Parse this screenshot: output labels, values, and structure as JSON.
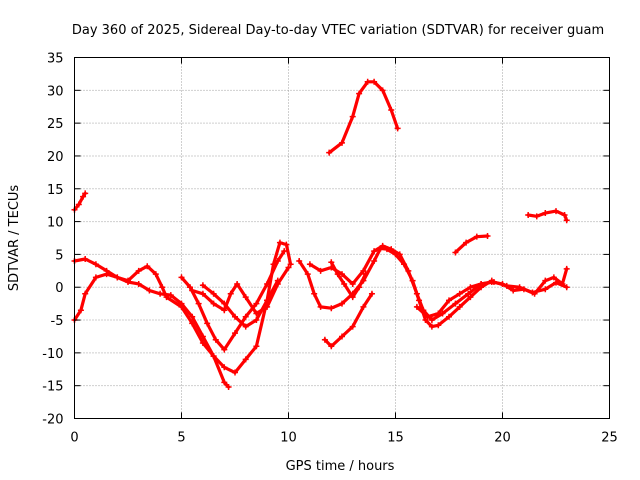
{
  "chart_data": {
    "type": "line",
    "title": "Day 360 of 2025, Sidereal Day-to-day VTEC variation (SDTVAR) for receiver guam",
    "xlabel": "GPS time / hours",
    "ylabel": "SDTVAR / TECUs",
    "xlim": [
      0,
      25
    ],
    "ylim": [
      -20,
      35
    ],
    "xticks": [
      0,
      5,
      10,
      15,
      20,
      25
    ],
    "yticks": [
      -20,
      -15,
      -10,
      -5,
      0,
      5,
      10,
      15,
      20,
      25,
      30,
      35
    ],
    "grid": true,
    "marker": "+",
    "color": "#ff0000",
    "series": [
      {
        "name": "arc-top",
        "points": [
          [
            11.9,
            20.5
          ],
          [
            12.5,
            22
          ],
          [
            13.0,
            26
          ],
          [
            13.3,
            29.5
          ],
          [
            13.7,
            31.3
          ],
          [
            14.0,
            31.3
          ],
          [
            14.4,
            30
          ],
          [
            14.8,
            27
          ],
          [
            15.1,
            24.2
          ]
        ]
      },
      {
        "name": "arc-start",
        "points": [
          [
            0.0,
            11.8
          ],
          [
            0.2,
            12.6
          ],
          [
            0.4,
            13.8
          ],
          [
            0.5,
            14.3
          ]
        ]
      },
      {
        "name": "arc-late",
        "points": [
          [
            21.2,
            11.0
          ],
          [
            21.6,
            10.8
          ],
          [
            22.0,
            11.3
          ],
          [
            22.5,
            11.6
          ],
          [
            22.9,
            11.0
          ],
          [
            23.0,
            10.2
          ]
        ]
      },
      {
        "name": "arc-19h",
        "points": [
          [
            17.8,
            5.3
          ],
          [
            18.3,
            6.8
          ],
          [
            18.8,
            7.7
          ],
          [
            19.3,
            7.8
          ]
        ]
      },
      {
        "name": "arc-a",
        "points": [
          [
            0.0,
            4.0
          ],
          [
            0.5,
            4.3
          ],
          [
            1.0,
            3.5
          ],
          [
            1.5,
            2.5
          ],
          [
            2.0,
            1.5
          ],
          [
            2.5,
            0.8
          ],
          [
            3.0,
            0.5
          ],
          [
            3.5,
            -0.5
          ],
          [
            4.0,
            -1.0
          ],
          [
            4.5,
            -1.2
          ],
          [
            5.0,
            -2.5
          ],
          [
            5.5,
            -4.5
          ],
          [
            6.0,
            -7.5
          ],
          [
            6.5,
            -10.5
          ],
          [
            7.0,
            -14.5
          ],
          [
            7.2,
            -15.2
          ]
        ]
      },
      {
        "name": "arc-b",
        "points": [
          [
            0.0,
            -5.0
          ],
          [
            0.3,
            -3.5
          ],
          [
            0.5,
            -1.0
          ],
          [
            1.0,
            1.5
          ],
          [
            1.5,
            2.0
          ],
          [
            2.0,
            1.5
          ],
          [
            2.5,
            1.0
          ],
          [
            3.0,
            2.5
          ],
          [
            3.4,
            3.2
          ],
          [
            3.8,
            2.0
          ],
          [
            4.1,
            0.0
          ],
          [
            4.3,
            -1.5
          ],
          [
            5.0,
            -3.0
          ],
          [
            5.5,
            -5.5
          ],
          [
            6.0,
            -8.5
          ],
          [
            6.5,
            -10.5
          ],
          [
            7.0,
            -12.2
          ],
          [
            7.5,
            -13.0
          ],
          [
            8.0,
            -11.0
          ],
          [
            8.5,
            -9.0
          ],
          [
            9.0,
            -2.0
          ],
          [
            9.3,
            3.5
          ],
          [
            9.6,
            6.8
          ],
          [
            9.9,
            6.5
          ],
          [
            10.1,
            3.5
          ]
        ]
      },
      {
        "name": "arc-c",
        "points": [
          [
            5.0,
            1.5
          ],
          [
            5.4,
            0.0
          ],
          [
            5.8,
            -2.5
          ],
          [
            6.2,
            -5.5
          ],
          [
            6.6,
            -8.0
          ],
          [
            7.0,
            -9.5
          ],
          [
            7.5,
            -7.0
          ],
          [
            8.0,
            -4.5
          ],
          [
            8.5,
            -2.5
          ],
          [
            9.0,
            0.5
          ],
          [
            9.5,
            4.0
          ],
          [
            9.8,
            5.5
          ]
        ]
      },
      {
        "name": "arc-d",
        "points": [
          [
            5.5,
            -0.5
          ],
          [
            6.0,
            -1.0
          ],
          [
            6.5,
            -2.5
          ],
          [
            7.0,
            -3.5
          ],
          [
            7.3,
            -1.0
          ],
          [
            7.6,
            0.5
          ],
          [
            8.0,
            -1.5
          ],
          [
            8.5,
            -4.0
          ],
          [
            9.0,
            -3.0
          ],
          [
            9.5,
            0.5
          ],
          [
            10.0,
            3.0
          ]
        ]
      },
      {
        "name": "arc-e",
        "points": [
          [
            6.0,
            0.3
          ],
          [
            6.5,
            -1.0
          ],
          [
            7.0,
            -2.5
          ],
          [
            7.5,
            -4.5
          ],
          [
            8.0,
            -6.0
          ],
          [
            8.5,
            -5.0
          ],
          [
            9.0,
            -2.0
          ],
          [
            9.5,
            1.0
          ]
        ]
      },
      {
        "name": "arc-f",
        "points": [
          [
            10.5,
            4.0
          ],
          [
            10.9,
            2.0
          ],
          [
            11.2,
            -1.0
          ],
          [
            11.5,
            -3.0
          ],
          [
            12.0,
            -3.2
          ],
          [
            12.5,
            -2.5
          ],
          [
            13.0,
            -1.0
          ],
          [
            13.5,
            1.0
          ],
          [
            14.0,
            4.0
          ],
          [
            14.3,
            5.9
          ],
          [
            14.6,
            5.8
          ],
          [
            15.0,
            5.0
          ],
          [
            15.4,
            3.5
          ],
          [
            15.8,
            1.0
          ],
          [
            16.1,
            -2.0
          ],
          [
            16.4,
            -5.0
          ],
          [
            16.7,
            -6.0
          ],
          [
            17.0,
            -5.8
          ],
          [
            17.5,
            -4.5
          ],
          [
            18.0,
            -3.0
          ],
          [
            18.5,
            -1.5
          ],
          [
            19.0,
            0.0
          ],
          [
            19.5,
            1.0
          ]
        ]
      },
      {
        "name": "arc-g",
        "points": [
          [
            11.0,
            3.5
          ],
          [
            11.5,
            2.5
          ],
          [
            12.0,
            3.0
          ],
          [
            12.5,
            2.0
          ],
          [
            13.0,
            0.5
          ],
          [
            13.5,
            2.5
          ],
          [
            14.0,
            5.5
          ],
          [
            14.4,
            6.3
          ],
          [
            14.8,
            5.8
          ],
          [
            15.2,
            5.0
          ],
          [
            15.6,
            2.5
          ],
          [
            16.0,
            -1.0
          ],
          [
            16.3,
            -3.5
          ],
          [
            16.7,
            -5.0
          ],
          [
            17.2,
            -4.0
          ],
          [
            17.8,
            -2.5
          ],
          [
            18.4,
            -1.0
          ],
          [
            19.0,
            0.5
          ],
          [
            19.6,
            0.8
          ],
          [
            20.2,
            0.2
          ],
          [
            20.8,
            0.0
          ],
          [
            21.4,
            -0.8
          ],
          [
            22.0,
            -0.3
          ],
          [
            22.5,
            0.7
          ],
          [
            23.0,
            0.0
          ]
        ]
      },
      {
        "name": "arc-h",
        "points": [
          [
            12.0,
            3.8
          ],
          [
            12.3,
            2.0
          ],
          [
            12.6,
            0.5
          ],
          [
            13.0,
            -1.5
          ],
          [
            13.3,
            0.0
          ],
          [
            13.6,
            2.0
          ]
        ]
      },
      {
        "name": "arc-i",
        "points": [
          [
            11.7,
            -8.0
          ],
          [
            12.0,
            -9.0
          ],
          [
            12.5,
            -7.5
          ],
          [
            13.0,
            -6.0
          ],
          [
            13.5,
            -3.0
          ],
          [
            13.9,
            -1.0
          ]
        ]
      },
      {
        "name": "arc-j",
        "points": [
          [
            16.0,
            -3.0
          ],
          [
            16.5,
            -4.5
          ],
          [
            17.0,
            -4.0
          ],
          [
            17.5,
            -2.0
          ],
          [
            18.0,
            -1.0
          ],
          [
            18.5,
            0.0
          ],
          [
            19.0,
            0.5
          ],
          [
            19.5,
            0.8
          ],
          [
            20.0,
            0.5
          ],
          [
            20.5,
            -0.5
          ],
          [
            21.0,
            -0.3
          ],
          [
            21.5,
            -1.0
          ],
          [
            22.0,
            1.0
          ],
          [
            22.4,
            1.5
          ],
          [
            22.8,
            0.5
          ],
          [
            23.0,
            2.8
          ]
        ]
      }
    ]
  }
}
